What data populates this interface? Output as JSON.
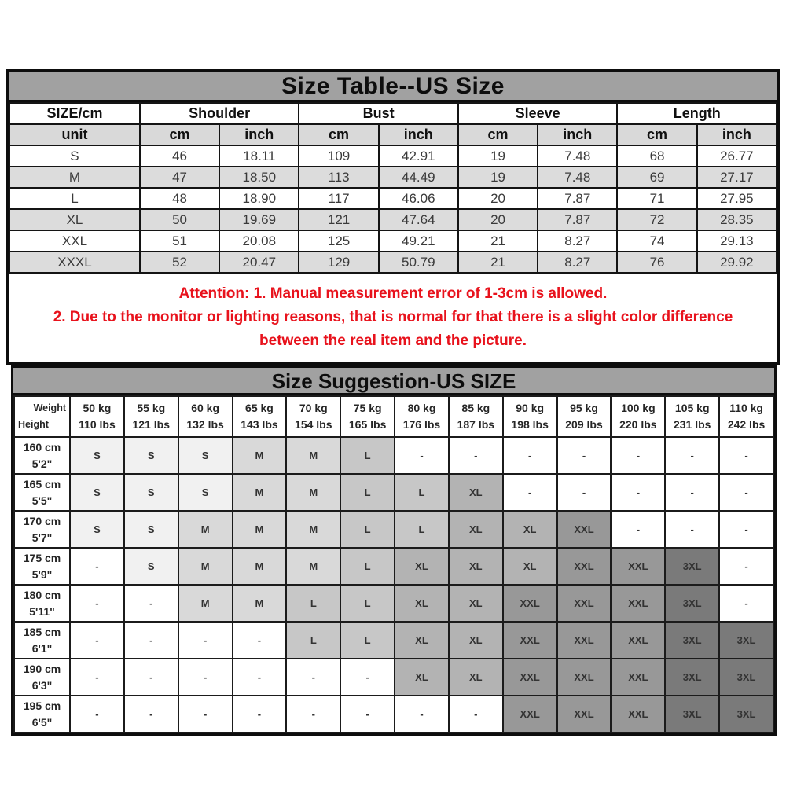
{
  "colors": {
    "title_bar_bg": "#a1a1a1",
    "unit_row_bg": "#d9d9d9",
    "alt_row_bg": "#dcdcdc",
    "attention_red": "#e8121c",
    "size_shades": {
      "S": "#f1f1f1",
      "M": "#d9d9d9",
      "L": "#c7c7c7",
      "XL": "#b3b3b3",
      "XXL": "#989898",
      "3XL": "#7a7a7a",
      "-": "#ffffff"
    }
  },
  "size_table": {
    "title": "Size Table--US Size",
    "size_col_header": "SIZE/cm",
    "groups": [
      "Shoulder",
      "Bust",
      "Sleeve",
      "Length"
    ],
    "unit_label": "unit",
    "unit_cols": [
      "cm",
      "inch",
      "cm",
      "inch",
      "cm",
      "inch",
      "cm",
      "inch"
    ],
    "rows": [
      {
        "size": "S",
        "values": [
          "46",
          "18.11",
          "109",
          "42.91",
          "19",
          "7.48",
          "68",
          "26.77"
        ]
      },
      {
        "size": "M",
        "values": [
          "47",
          "18.50",
          "113",
          "44.49",
          "19",
          "7.48",
          "69",
          "27.17"
        ]
      },
      {
        "size": "L",
        "values": [
          "48",
          "18.90",
          "117",
          "46.06",
          "20",
          "7.87",
          "71",
          "27.95"
        ]
      },
      {
        "size": "XL",
        "values": [
          "50",
          "19.69",
          "121",
          "47.64",
          "20",
          "7.87",
          "72",
          "28.35"
        ]
      },
      {
        "size": "XXL",
        "values": [
          "51",
          "20.08",
          "125",
          "49.21",
          "21",
          "8.27",
          "74",
          "29.13"
        ]
      },
      {
        "size": "XXXL",
        "values": [
          "52",
          "20.47",
          "129",
          "50.79",
          "21",
          "8.27",
          "76",
          "29.92"
        ]
      }
    ],
    "attention_lines": [
      "Attention:  1. Manual measurement error of 1-3cm is allowed.",
      "2. Due to the monitor or lighting reasons, that is normal for that there is a slight color difference",
      "between the real item and the picture."
    ]
  },
  "size_suggestion": {
    "title": "Size Suggestion-US SIZE",
    "corner": {
      "top": "Weight",
      "bottom": "Height"
    },
    "weights": [
      {
        "kg": "50 kg",
        "lbs": "110 lbs"
      },
      {
        "kg": "55 kg",
        "lbs": "121 lbs"
      },
      {
        "kg": "60 kg",
        "lbs": "132 lbs"
      },
      {
        "kg": "65 kg",
        "lbs": "143 lbs"
      },
      {
        "kg": "70 kg",
        "lbs": "154 lbs"
      },
      {
        "kg": "75 kg",
        "lbs": "165 lbs"
      },
      {
        "kg": "80 kg",
        "lbs": "176 lbs"
      },
      {
        "kg": "85 kg",
        "lbs": "187 lbs"
      },
      {
        "kg": "90 kg",
        "lbs": "198 lbs"
      },
      {
        "kg": "95 kg",
        "lbs": "209 lbs"
      },
      {
        "kg": "100 kg",
        "lbs": "220 lbs"
      },
      {
        "kg": "105 kg",
        "lbs": "231 lbs"
      },
      {
        "kg": "110 kg",
        "lbs": "242 lbs"
      }
    ],
    "rows": [
      {
        "height_cm": "160 cm",
        "height_ft": "5'2\"",
        "cells": [
          "S",
          "S",
          "S",
          "M",
          "M",
          "L",
          "-",
          "-",
          "-",
          "-",
          "-",
          "-",
          "-"
        ]
      },
      {
        "height_cm": "165 cm",
        "height_ft": "5'5\"",
        "cells": [
          "S",
          "S",
          "S",
          "M",
          "M",
          "L",
          "L",
          "XL",
          "-",
          "-",
          "-",
          "-",
          "-"
        ]
      },
      {
        "height_cm": "170 cm",
        "height_ft": "5'7\"",
        "cells": [
          "S",
          "S",
          "M",
          "M",
          "M",
          "L",
          "L",
          "XL",
          "XL",
          "XXL",
          "-",
          "-",
          "-"
        ]
      },
      {
        "height_cm": "175 cm",
        "height_ft": "5'9\"",
        "cells": [
          "-",
          "S",
          "M",
          "M",
          "M",
          "L",
          "XL",
          "XL",
          "XL",
          "XXL",
          "XXL",
          "3XL",
          "-"
        ]
      },
      {
        "height_cm": "180 cm",
        "height_ft": "5'11\"",
        "cells": [
          "-",
          "-",
          "M",
          "M",
          "L",
          "L",
          "XL",
          "XL",
          "XXL",
          "XXL",
          "XXL",
          "3XL",
          "-"
        ]
      },
      {
        "height_cm": "185 cm",
        "height_ft": "6'1\"",
        "cells": [
          "-",
          "-",
          "-",
          "-",
          "L",
          "L",
          "XL",
          "XL",
          "XXL",
          "XXL",
          "XXL",
          "3XL",
          "3XL"
        ]
      },
      {
        "height_cm": "190 cm",
        "height_ft": "6'3\"",
        "cells": [
          "-",
          "-",
          "-",
          "-",
          "-",
          "-",
          "XL",
          "XL",
          "XXL",
          "XXL",
          "XXL",
          "3XL",
          "3XL"
        ]
      },
      {
        "height_cm": "195 cm",
        "height_ft": "6'5\"",
        "cells": [
          "-",
          "-",
          "-",
          "-",
          "-",
          "-",
          "-",
          "-",
          "XXL",
          "XXL",
          "XXL",
          "3XL",
          "3XL"
        ]
      }
    ]
  }
}
